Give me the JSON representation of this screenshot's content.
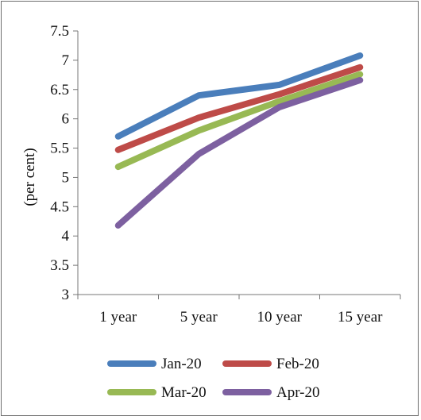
{
  "chart_data": {
    "type": "line",
    "title": "",
    "xlabel": "",
    "ylabel": "(per cent)",
    "categories": [
      "1 year",
      "5 year",
      "10 year",
      "15 year"
    ],
    "ylim": [
      3,
      7.5
    ],
    "yticks": [
      "7.5",
      "7",
      "6.5",
      "6",
      "5.5",
      "5",
      "4.5",
      "4",
      "3.5",
      "3"
    ],
    "grid": false,
    "legend_position": "bottom",
    "series": [
      {
        "name": "Jan-20",
        "color": "#4a7ebb",
        "values": [
          5.7,
          6.4,
          6.58,
          7.08
        ]
      },
      {
        "name": "Feb-20",
        "color": "#be4b48",
        "values": [
          5.47,
          6.02,
          6.42,
          6.88
        ]
      },
      {
        "name": "Mar-20",
        "color": "#98b954",
        "values": [
          5.18,
          5.8,
          6.3,
          6.76
        ]
      },
      {
        "name": "Apr-20",
        "color": "#7d60a0",
        "values": [
          4.18,
          5.4,
          6.2,
          6.66
        ]
      }
    ]
  }
}
